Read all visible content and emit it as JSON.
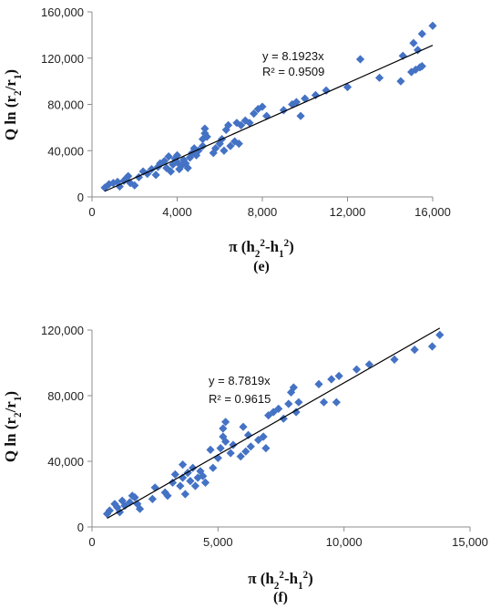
{
  "chart_data": [
    {
      "type": "scatter",
      "panel_label": "(e)",
      "xlabel": "π (h₂²-h₁²)",
      "ylabel": "Q ln (r₂/r₁)",
      "xlim": [
        0,
        16000
      ],
      "ylim": [
        0,
        160000
      ],
      "xticks": [
        0,
        4000,
        8000,
        12000,
        16000
      ],
      "yticks": [
        0,
        40000,
        80000,
        120000,
        160000
      ],
      "x_tick_labels": [
        "0",
        "4,000",
        "8,000",
        "12,000",
        "16,000"
      ],
      "y_tick_labels": [
        "0",
        "40,000",
        "80,000",
        "120,000",
        "160,000"
      ],
      "grid": false,
      "marker_color": "#4472C4",
      "trendline": {
        "slope": 8.1923,
        "equation": "y = 8.1923x",
        "r_squared": "R² = 0.9509",
        "x_range": [
          600,
          16000
        ]
      },
      "points": [
        [
          600,
          8000
        ],
        [
          800,
          11000
        ],
        [
          1000,
          12000
        ],
        [
          1200,
          13000
        ],
        [
          1300,
          9000
        ],
        [
          1500,
          14000
        ],
        [
          1600,
          16000
        ],
        [
          1700,
          18000
        ],
        [
          1800,
          12000
        ],
        [
          2000,
          10000
        ],
        [
          2200,
          17000
        ],
        [
          2400,
          22000
        ],
        [
          2600,
          20000
        ],
        [
          2800,
          24000
        ],
        [
          3000,
          19000
        ],
        [
          3100,
          26000
        ],
        [
          3200,
          29000
        ],
        [
          3400,
          31000
        ],
        [
          3500,
          25000
        ],
        [
          3600,
          35000
        ],
        [
          3700,
          22000
        ],
        [
          3800,
          28000
        ],
        [
          3900,
          33000
        ],
        [
          4000,
          30000
        ],
        [
          4000,
          36000
        ],
        [
          4100,
          24000
        ],
        [
          4200,
          27000
        ],
        [
          4300,
          32000
        ],
        [
          4400,
          29000
        ],
        [
          4500,
          25000
        ],
        [
          4600,
          34000
        ],
        [
          4700,
          38000
        ],
        [
          4800,
          42000
        ],
        [
          4900,
          36000
        ],
        [
          5000,
          40000
        ],
        [
          5200,
          44000
        ],
        [
          5200,
          50000
        ],
        [
          5300,
          55000
        ],
        [
          5300,
          59000
        ],
        [
          5400,
          52000
        ],
        [
          5700,
          38000
        ],
        [
          5800,
          42000
        ],
        [
          6000,
          46000
        ],
        [
          6100,
          50000
        ],
        [
          6200,
          40000
        ],
        [
          6300,
          58000
        ],
        [
          6400,
          62000
        ],
        [
          6500,
          44000
        ],
        [
          6700,
          48000
        ],
        [
          6800,
          64000
        ],
        [
          6900,
          46000
        ],
        [
          7000,
          62000
        ],
        [
          7200,
          66000
        ],
        [
          7400,
          64000
        ],
        [
          7600,
          72000
        ],
        [
          7800,
          76000
        ],
        [
          8000,
          78000
        ],
        [
          8200,
          70000
        ],
        [
          9000,
          75000
        ],
        [
          9400,
          80000
        ],
        [
          9600,
          82000
        ],
        [
          9800,
          70000
        ],
        [
          10000,
          85000
        ],
        [
          10500,
          88000
        ],
        [
          11000,
          92000
        ],
        [
          12000,
          95000
        ],
        [
          12600,
          119000
        ],
        [
          13500,
          103000
        ],
        [
          14500,
          100000
        ],
        [
          14600,
          122000
        ],
        [
          15000,
          108000
        ],
        [
          15100,
          133000
        ],
        [
          15200,
          110000
        ],
        [
          15300,
          127000
        ],
        [
          15400,
          112000
        ],
        [
          15500,
          113000
        ],
        [
          15500,
          141000
        ],
        [
          16000,
          148000
        ]
      ]
    },
    {
      "type": "scatter",
      "panel_label": "(f)",
      "xlabel": "π (h₂²-h₁²)",
      "ylabel": "Q ln (r₂/r₁)",
      "xlim": [
        0,
        15000
      ],
      "ylim": [
        0,
        120000
      ],
      "xticks": [
        0,
        5000,
        10000,
        15000
      ],
      "yticks": [
        0,
        40000,
        80000,
        120000
      ],
      "x_tick_labels": [
        "0",
        "5,000",
        "10,000",
        "15,000"
      ],
      "y_tick_labels": [
        "0",
        "40,000",
        "80,000",
        "120,000"
      ],
      "grid": false,
      "marker_color": "#4472C4",
      "trendline": {
        "slope": 8.7819,
        "equation": "y = 8.7819x",
        "r_squared": "R² = 0.9615",
        "x_range": [
          600,
          13800
        ]
      },
      "points": [
        [
          600,
          8000
        ],
        [
          700,
          10000
        ],
        [
          900,
          14000
        ],
        [
          1000,
          12000
        ],
        [
          1100,
          9000
        ],
        [
          1200,
          16000
        ],
        [
          1300,
          13000
        ],
        [
          1500,
          15000
        ],
        [
          1600,
          19000
        ],
        [
          1700,
          18000
        ],
        [
          1800,
          14000
        ],
        [
          1900,
          11000
        ],
        [
          2400,
          17000
        ],
        [
          2500,
          24000
        ],
        [
          2900,
          21000
        ],
        [
          3000,
          19000
        ],
        [
          3200,
          27000
        ],
        [
          3300,
          32000
        ],
        [
          3500,
          25000
        ],
        [
          3600,
          30000
        ],
        [
          3600,
          38000
        ],
        [
          3700,
          20000
        ],
        [
          3800,
          33000
        ],
        [
          3900,
          28000
        ],
        [
          4000,
          36000
        ],
        [
          4100,
          25000
        ],
        [
          4200,
          30000
        ],
        [
          4300,
          34000
        ],
        [
          4400,
          31000
        ],
        [
          4500,
          27000
        ],
        [
          4700,
          47000
        ],
        [
          4800,
          36000
        ],
        [
          5000,
          42000
        ],
        [
          5100,
          48000
        ],
        [
          5200,
          55000
        ],
        [
          5200,
          60000
        ],
        [
          5300,
          64000
        ],
        [
          5300,
          52000
        ],
        [
          5500,
          45000
        ],
        [
          5600,
          50000
        ],
        [
          5900,
          43000
        ],
        [
          6000,
          61000
        ],
        [
          6100,
          46000
        ],
        [
          6200,
          56000
        ],
        [
          6300,
          49000
        ],
        [
          6600,
          53000
        ],
        [
          6800,
          55000
        ],
        [
          6900,
          48000
        ],
        [
          7000,
          68000
        ],
        [
          7200,
          70000
        ],
        [
          7400,
          72000
        ],
        [
          7600,
          66000
        ],
        [
          7800,
          75000
        ],
        [
          7900,
          82000
        ],
        [
          8000,
          85000
        ],
        [
          8100,
          70000
        ],
        [
          8200,
          76000
        ],
        [
          9000,
          87000
        ],
        [
          9200,
          76000
        ],
        [
          9500,
          90000
        ],
        [
          9700,
          76000
        ],
        [
          9800,
          92000
        ],
        [
          10500,
          96000
        ],
        [
          11000,
          99000
        ],
        [
          12000,
          102000
        ],
        [
          12800,
          108000
        ],
        [
          13500,
          110000
        ],
        [
          13800,
          117000
        ]
      ]
    }
  ]
}
